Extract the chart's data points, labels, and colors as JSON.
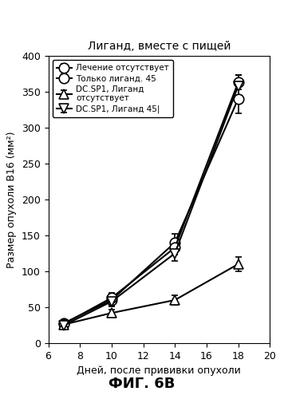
{
  "title": "Лиганд, вместе с пищей",
  "xlabel": "Дней, после прививки опухоли",
  "ylabel": "Размер опухоли B16 (мм²)",
  "fig_label": "ФИГ. 6В",
  "xlim": [
    6,
    20
  ],
  "ylim": [
    0,
    400
  ],
  "xticks": [
    6,
    8,
    10,
    12,
    14,
    16,
    18,
    20
  ],
  "yticks": [
    0,
    50,
    100,
    150,
    200,
    250,
    300,
    350,
    400
  ],
  "series": [
    {
      "label": "Лечение отсутствует",
      "x": [
        7,
        10,
        14,
        18
      ],
      "y": [
        28,
        60,
        140,
        340
      ],
      "yerr": [
        3,
        8,
        12,
        20
      ],
      "color": "#000000",
      "marker": "o",
      "marker_size": 9,
      "marker_facecolor": "white",
      "linestyle": "-",
      "linewidth": 1.5
    },
    {
      "label": "Только лиганд. 45",
      "x": [
        7,
        10,
        14,
        18
      ],
      "y": [
        27,
        63,
        133,
        363
      ],
      "yerr": [
        3,
        7,
        10,
        10
      ],
      "color": "#000000",
      "marker": "o",
      "marker_size": 9,
      "marker_facecolor": "white",
      "linestyle": "-",
      "linewidth": 1.5
    },
    {
      "label": "DC.SP1, Лиганд\nотсутствует",
      "x": [
        7,
        10,
        14,
        18
      ],
      "y": [
        26,
        42,
        60,
        110
      ],
      "yerr": [
        3,
        5,
        7,
        10
      ],
      "color": "#000000",
      "marker": "^",
      "marker_size": 9,
      "marker_facecolor": "white",
      "linestyle": "-",
      "linewidth": 1.5
    },
    {
      "label": "DC.SP1, Лиганд 45|",
      "x": [
        7,
        10,
        14,
        18
      ],
      "y": [
        25,
        58,
        125,
        358
      ],
      "yerr": [
        3,
        7,
        10,
        15
      ],
      "color": "#000000",
      "marker": "v",
      "marker_size": 9,
      "marker_facecolor": "white",
      "linestyle": "-",
      "linewidth": 1.5
    }
  ],
  "background_color": "#ffffff",
  "legend_fontsize": 7.5,
  "axis_fontsize": 9,
  "title_fontsize": 10,
  "fig_label_fontsize": 13
}
